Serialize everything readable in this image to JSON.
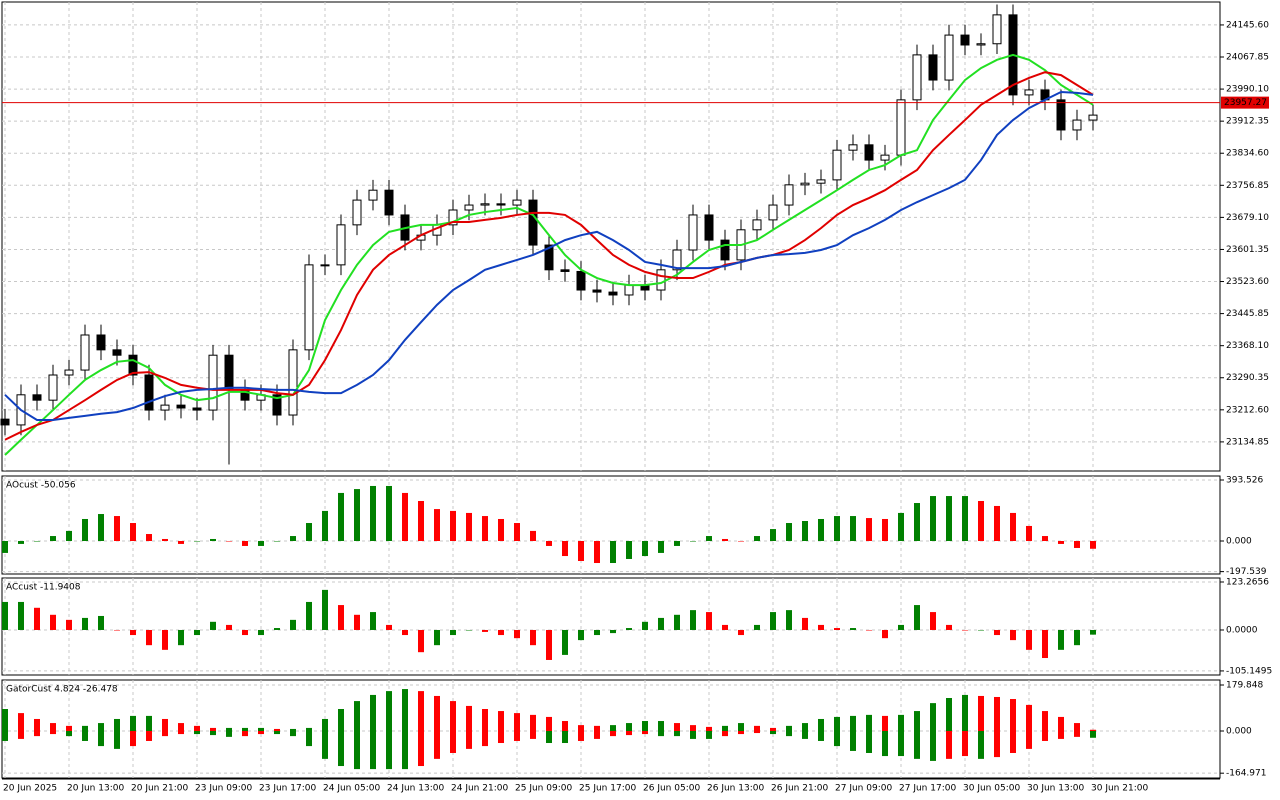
{
  "chart_data": [
    {
      "type": "candlestick",
      "categories": [
        "20 Jun 2025",
        null,
        null,
        null,
        "20 Jun 13:00",
        null,
        null,
        null,
        "20 Jun 21:00",
        null,
        null,
        null,
        "23 Jun 09:00",
        null,
        null,
        null,
        "23 Jun 17:00",
        null,
        null,
        null,
        "24 Jun 05:00",
        null,
        null,
        null,
        "24 Jun 13:00",
        null,
        null,
        null,
        "24 Jun 21:00",
        null,
        null,
        null,
        "25 Jun 09:00",
        null,
        null,
        null,
        "25 Jun 17:00",
        null,
        null,
        null,
        "26 Jun 05:00",
        null,
        null,
        null,
        "26 Jun 13:00",
        null,
        null,
        null,
        "26 Jun 21:00",
        null,
        null,
        null,
        "27 Jun 09:00",
        null,
        null,
        null,
        "27 Jun 17:00",
        null,
        null,
        null,
        "30 Jun 05:00",
        null,
        null,
        null,
        "30 Jun 13:00",
        null,
        null,
        null,
        "30 Jun 21:00"
      ],
      "open": [
        23190,
        23176,
        23249,
        23236,
        23297,
        23309,
        23394,
        23358,
        23345,
        23297,
        23212,
        23224,
        23217,
        23212,
        23345,
        23261,
        23236,
        23249,
        23200,
        23358,
        23564,
        23564,
        23661,
        23721,
        23745,
        23685,
        23624,
        23636,
        23661,
        23697,
        23709,
        23712,
        23709,
        23721,
        23612,
        23552,
        23548,
        23503,
        23498,
        23491,
        23515,
        23503,
        23552,
        23600,
        23685,
        23624,
        23576,
        23649,
        23673,
        23709,
        23758,
        23762,
        23770,
        23842,
        23855,
        23818,
        23830,
        23964,
        24073,
        24012,
        24121,
        24097,
        24100,
        24170,
        23976,
        23988,
        23964,
        23891,
        23915
      ],
      "high": [
        23215,
        23274,
        23274,
        23322,
        23334,
        23419,
        23419,
        23383,
        23370,
        23322,
        23249,
        23249,
        23242,
        23370,
        23370,
        23286,
        23274,
        23274,
        23383,
        23589,
        23589,
        23686,
        23746,
        23770,
        23770,
        23710,
        23661,
        23686,
        23722,
        23734,
        23737,
        23737,
        23746,
        23746,
        23637,
        23577,
        23573,
        23528,
        23523,
        23540,
        23540,
        23577,
        23625,
        23710,
        23710,
        23649,
        23674,
        23698,
        23734,
        23783,
        23787,
        23795,
        23867,
        23880,
        23880,
        23855,
        23989,
        24098,
        24098,
        24146,
        24146,
        24125,
        24195,
        24195,
        24013,
        24013,
        23989,
        23940,
        23952
      ],
      "low": [
        23151,
        23151,
        23211,
        23211,
        23272,
        23284,
        23333,
        23320,
        23272,
        23187,
        23187,
        23192,
        23187,
        23187,
        23080,
        23211,
        23211,
        23175,
        23175,
        23333,
        23539,
        23539,
        23636,
        23696,
        23660,
        23599,
        23599,
        23611,
        23636,
        23672,
        23684,
        23684,
        23684,
        23587,
        23527,
        23523,
        23478,
        23473,
        23466,
        23466,
        23478,
        23478,
        23527,
        23575,
        23599,
        23551,
        23551,
        23624,
        23648,
        23684,
        23733,
        23737,
        23745,
        23817,
        23793,
        23793,
        23805,
        23939,
        23987,
        23987,
        24072,
        24072,
        24075,
        23951,
        23951,
        23939,
        23866,
        23866,
        23890
      ],
      "close": [
        23176,
        23249,
        23236,
        23297,
        23309,
        23394,
        23358,
        23345,
        23297,
        23212,
        23224,
        23217,
        23212,
        23345,
        23261,
        23236,
        23249,
        23200,
        23358,
        23564,
        23564,
        23661,
        23721,
        23745,
        23685,
        23624,
        23636,
        23661,
        23697,
        23709,
        23712,
        23709,
        23721,
        23612,
        23552,
        23548,
        23503,
        23498,
        23491,
        23515,
        23503,
        23552,
        23600,
        23685,
        23624,
        23576,
        23649,
        23673,
        23709,
        23758,
        23762,
        23770,
        23842,
        23855,
        23818,
        23830,
        23964,
        24073,
        24012,
        24121,
        24097,
        24100,
        24170,
        23976,
        23988,
        23964,
        23891,
        23915,
        23927
      ],
      "series": [
        {
          "color": "#22e022",
          "values": [
            23103,
            23140,
            23176,
            23212,
            23249,
            23285,
            23309,
            23329,
            23333,
            23314,
            23273,
            23249,
            23236,
            23241,
            23256,
            23256,
            23249,
            23241,
            23249,
            23309,
            23430,
            23503,
            23564,
            23612,
            23644,
            23653,
            23661,
            23661,
            23668,
            23685,
            23692,
            23697,
            23702,
            23685,
            23636,
            23588,
            23552,
            23532,
            23520,
            23515,
            23515,
            23520,
            23540,
            23571,
            23600,
            23612,
            23612,
            23624,
            23649,
            23673,
            23697,
            23721,
            23745,
            23770,
            23794,
            23806,
            23830,
            23842,
            23915,
            23964,
            24012,
            24041,
            24061,
            24073,
            24061,
            24036,
            24000,
            23976,
            23952
          ]
        },
        {
          "color": "#e00000",
          "values": [
            23140,
            23159,
            23176,
            23188,
            23212,
            23236,
            23261,
            23285,
            23302,
            23304,
            23290,
            23273,
            23266,
            23261,
            23261,
            23261,
            23261,
            23253,
            23249,
            23273,
            23333,
            23406,
            23491,
            23552,
            23588,
            23612,
            23636,
            23653,
            23668,
            23668,
            23673,
            23678,
            23685,
            23690,
            23690,
            23685,
            23661,
            23624,
            23588,
            23564,
            23547,
            23537,
            23532,
            23532,
            23547,
            23564,
            23571,
            23581,
            23588,
            23600,
            23624,
            23653,
            23685,
            23709,
            23726,
            23745,
            23770,
            23794,
            23842,
            23879,
            23915,
            23952,
            23976,
            24000,
            24017,
            24031,
            24024,
            24000,
            23976
          ]
        },
        {
          "color": "#1040c0",
          "values": [
            23249,
            23212,
            23188,
            23188,
            23193,
            23198,
            23203,
            23207,
            23217,
            23232,
            23246,
            23256,
            23261,
            23263,
            23266,
            23266,
            23263,
            23261,
            23261,
            23256,
            23253,
            23253,
            23273,
            23297,
            23333,
            23382,
            23425,
            23467,
            23503,
            23527,
            23552,
            23564,
            23576,
            23588,
            23605,
            23624,
            23636,
            23644,
            23624,
            23600,
            23571,
            23564,
            23556,
            23556,
            23556,
            23561,
            23571,
            23581,
            23588,
            23590,
            23593,
            23600,
            23612,
            23636,
            23653,
            23673,
            23697,
            23716,
            23733,
            23750,
            23770,
            23818,
            23879,
            23915,
            23944,
            23964,
            23983,
            23981,
            23976
          ]
        }
      ],
      "last_price": 23957.27,
      "last_price_color": "#e00000",
      "ylim": [
        23064.3,
        24201.2
      ],
      "yticks": [
        {
          "value": 24145.6,
          "label": "24145.60"
        },
        24067.85,
        {
          "value": 23990.1,
          "label": "23990.10"
        },
        23912.35,
        {
          "value": 23834.6,
          "label": "23834.60"
        },
        23756.85,
        {
          "value": 23679.1,
          "label": "23679.10"
        },
        23601.35,
        {
          "value": 23523.6,
          "label": "23523.60"
        },
        23445.85,
        {
          "value": 23368.1,
          "label": "23368.10"
        },
        23290.35,
        {
          "value": 23212.6,
          "label": "23212.60"
        },
        23134.85
      ],
      "grid": true
    },
    {
      "type": "bar",
      "title": "AOcust -50.056",
      "values": [
        -77,
        -19,
        0,
        32,
        65,
        142,
        174,
        161,
        116,
        45,
        13,
        -19,
        0,
        13,
        0,
        -32,
        -32,
        0,
        32,
        116,
        194,
        310,
        335,
        355,
        355,
        310,
        258,
        206,
        194,
        181,
        161,
        142,
        116,
        65,
        -32,
        -97,
        -129,
        -142,
        -142,
        -116,
        -97,
        -77,
        -32,
        0,
        32,
        13,
        0,
        32,
        77,
        116,
        129,
        142,
        161,
        161,
        148,
        142,
        181,
        245,
        290,
        290,
        290,
        258,
        226,
        181,
        97,
        32,
        -19,
        -45,
        -50.056
      ],
      "up_color": "#008000",
      "down_color": "#ff0000",
      "ylim": [
        -212.9,
        419.3
      ],
      "yticks": [
        393.526,
        {
          "value": 0,
          "label": "0.000"
        },
        -197.539
      ],
      "grid": true
    },
    {
      "type": "bar",
      "title": "ACcust -11.9408",
      "values": [
        72,
        72,
        57,
        39,
        26,
        31,
        36,
        0,
        -13,
        -39,
        -51,
        -39,
        -13,
        21,
        13,
        -13,
        -13,
        5,
        26,
        72,
        103,
        64,
        39,
        46,
        13,
        -13,
        -57,
        -39,
        -13,
        0,
        -5,
        -13,
        -21,
        -39,
        -77,
        -64,
        -26,
        -13,
        -8,
        5,
        21,
        31,
        39,
        51,
        46,
        13,
        -13,
        13,
        46,
        51,
        31,
        13,
        5,
        5,
        0,
        -21,
        13,
        64,
        46,
        13,
        0,
        0,
        -13,
        -26,
        -51,
        -72,
        -51,
        -39,
        -11.9408
      ],
      "up_color": "#008000",
      "down_color": "#ff0000",
      "ylim": [
        -115.6,
        133.5
      ],
      "yticks": [
        123.2656,
        {
          "value": 0,
          "label": "0.0000"
        },
        -105.1495
      ],
      "grid": true
    },
    {
      "type": "gator",
      "title": "GatorCust 4.824 -26.478",
      "upper": [
        86,
        70,
        47,
        31,
        20,
        20,
        31,
        47,
        59,
        59,
        47,
        31,
        20,
        12,
        12,
        12,
        12,
        8,
        8,
        12,
        47,
        86,
        117,
        141,
        156,
        164,
        156,
        137,
        117,
        98,
        86,
        78,
        70,
        63,
        55,
        39,
        23,
        20,
        23,
        31,
        39,
        39,
        31,
        23,
        16,
        20,
        31,
        20,
        12,
        20,
        31,
        47,
        55,
        59,
        63,
        59,
        63,
        78,
        109,
        129,
        141,
        137,
        133,
        125,
        102,
        78,
        55,
        31,
        4.824
      ],
      "lower": [
        -39,
        -31,
        -20,
        -12,
        -20,
        -39,
        -59,
        -70,
        -59,
        -39,
        -20,
        -12,
        -12,
        -16,
        -23,
        -20,
        -12,
        -12,
        -20,
        -59,
        -109,
        -137,
        -149,
        -149,
        -149,
        -149,
        -137,
        -109,
        -86,
        -70,
        -59,
        -47,
        -39,
        -31,
        -47,
        -47,
        -39,
        -31,
        -20,
        -16,
        -12,
        -20,
        -20,
        -31,
        -31,
        -20,
        -12,
        -8,
        -12,
        -20,
        -31,
        -39,
        -59,
        -78,
        -86,
        -98,
        -98,
        -109,
        -117,
        -109,
        -98,
        -109,
        -102,
        -86,
        -70,
        -39,
        -31,
        -23,
        -26.478
      ],
      "up_color": "#008000",
      "down_color": "#ff0000",
      "ylim": [
        -183.8,
        199.4
      ],
      "yticks": [
        179.848,
        {
          "value": 0,
          "label": "0.000"
        },
        -164.971
      ],
      "grid": true
    }
  ]
}
